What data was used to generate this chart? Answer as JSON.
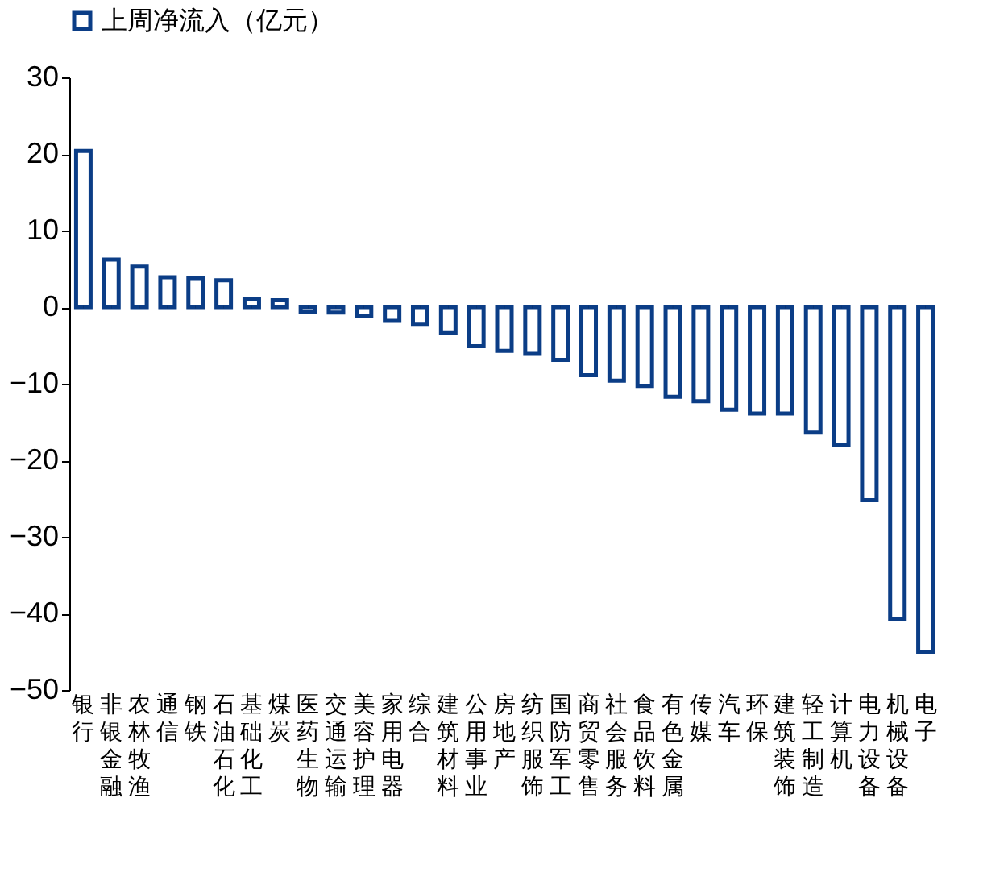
{
  "chart_data": {
    "type": "bar",
    "categories": [
      "银行",
      "非银金融",
      "农林牧渔",
      "通信",
      "钢铁",
      "石油石化",
      "基础化工",
      "煤炭",
      "医药生物",
      "交通运输",
      "美容护理",
      "家用电器",
      "综合",
      "建筑材料",
      "公用事业",
      "房地产",
      "纺织服饰",
      "国防军工",
      "商贸零售",
      "社会服务",
      "食品饮料",
      "有色金属",
      "传媒",
      "汽车",
      "环保",
      "建筑装饰",
      "轻工制造",
      "计算机",
      "电力设备",
      "机械设备",
      "电子"
    ],
    "series": [
      {
        "name": "上周净流入（亿元）",
        "color": "#0b3d86",
        "values": [
          20.4,
          6.2,
          5.3,
          3.9,
          3.8,
          3.5,
          1.1,
          0.9,
          -0.6,
          -0.7,
          -1.1,
          -1.8,
          -2.3,
          -3.4,
          -5.1,
          -5.7,
          -6.1,
          -6.9,
          -8.9,
          -9.6,
          -10.3,
          -11.7,
          -12.3,
          -13.4,
          -13.9,
          -13.9,
          -16.4,
          -18.0,
          -25.2,
          -40.8,
          -45.0
        ]
      }
    ],
    "ylim": [
      -50,
      30
    ],
    "yticks": [
      -50,
      -40,
      -30,
      -20,
      -10,
      0,
      10,
      20,
      30
    ],
    "legend": "top left"
  }
}
